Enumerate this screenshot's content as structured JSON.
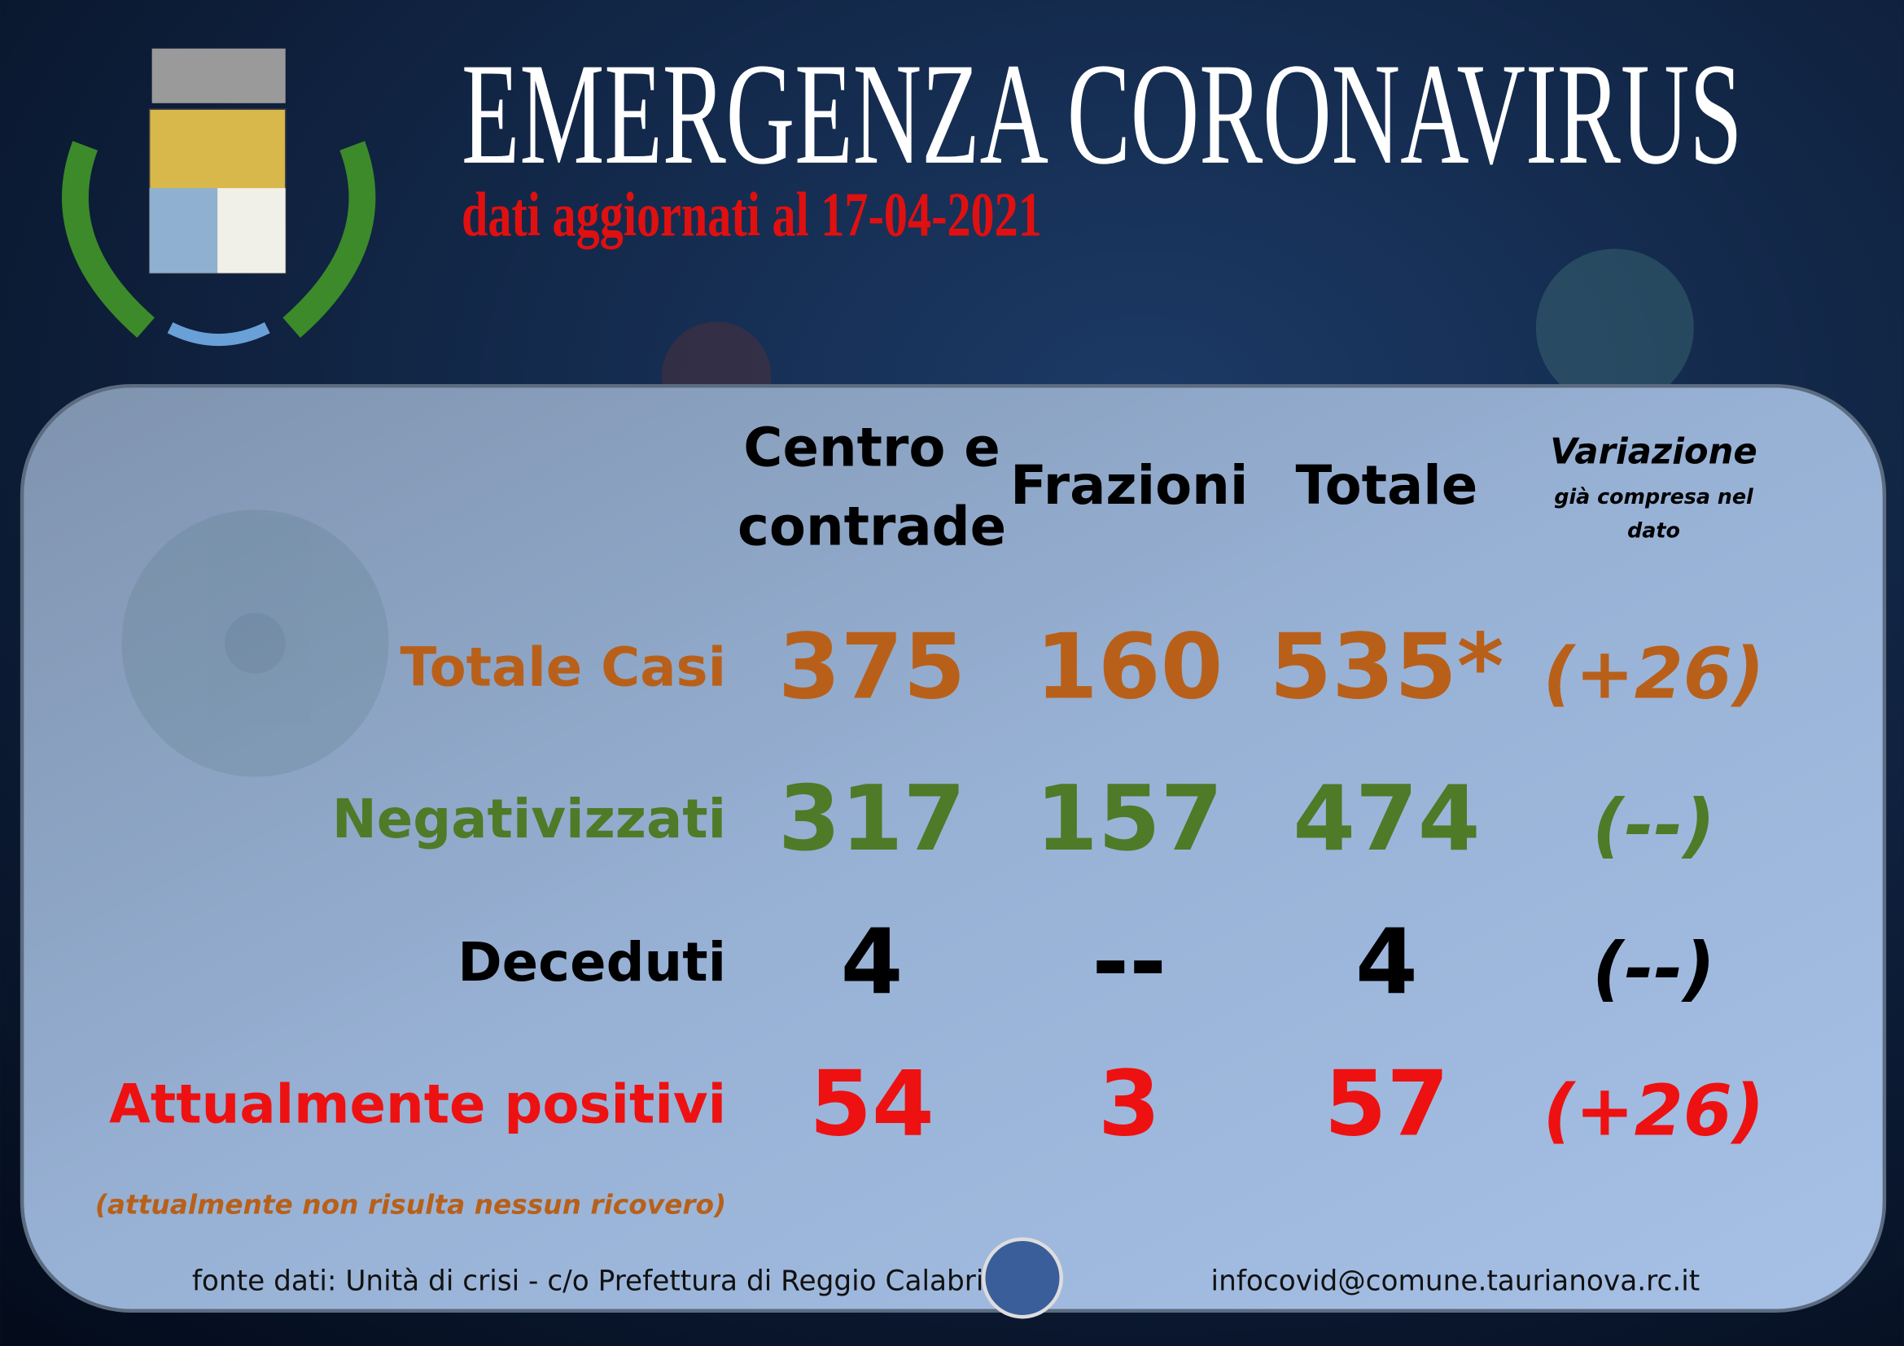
{
  "header": {
    "title": "EMERGENZA CORONAVIRUS",
    "subtitle": "dati aggiornati al 17-04-2021"
  },
  "table": {
    "columns": [
      [
        "Centro e",
        "contrade"
      ],
      [
        "Frazioni"
      ],
      [
        "Totale"
      ]
    ],
    "variation_column": {
      "title": "Variazione",
      "note": [
        "già compresa nel",
        "dato"
      ]
    },
    "rows": [
      {
        "label": "Totale Casi",
        "color": "#b8601a",
        "values": [
          "375",
          "160",
          "535*",
          "(+26)"
        ]
      },
      {
        "label": "Negativizzati",
        "color": "#4f7a28",
        "values": [
          "317",
          "157",
          "474",
          "(--)"
        ]
      },
      {
        "label": "Deceduti",
        "color": "#000000",
        "values": [
          "4",
          "--",
          "4",
          "(--)"
        ]
      },
      {
        "label": "Attualmente positivi",
        "color": "#ee1111",
        "values": [
          "54",
          "3",
          "57",
          "(+26)"
        ]
      }
    ],
    "note": "(attualmente non risulta nessun ricovero)"
  },
  "footer": {
    "source": "fonte dati: Unità di crisi - c/o Prefettura di Reggio Calabria",
    "email": "infocovid@comune.taurianova.rc.it"
  }
}
